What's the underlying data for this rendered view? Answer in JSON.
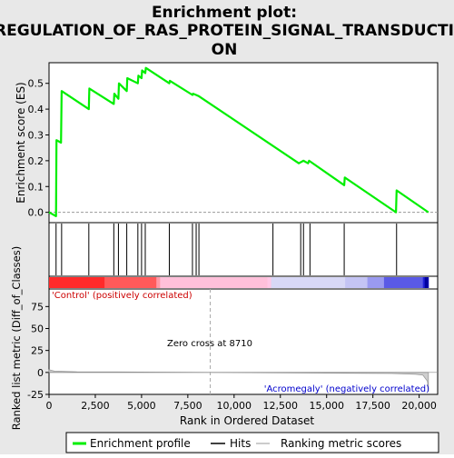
{
  "chart_data": {
    "title_line1": "Enrichment plot:",
    "title_line2": "REGULATION_OF_RAS_PROTEIN_SIGNAL_TRANSDUCTI",
    "title_line3": "ON",
    "type": "line",
    "panels": {
      "enrichment": {
        "ylabel": "Enrichment score (ES)",
        "ylim": [
          -0.04,
          0.58
        ],
        "yticks": [
          "0.0",
          "0.1",
          "0.2",
          "0.3",
          "0.4",
          "0.5"
        ],
        "ytick_values": [
          0.0,
          0.1,
          0.2,
          0.3,
          0.4,
          0.5
        ],
        "series_name": "Enrichment profile",
        "color": "#00ee00",
        "points": [
          [
            0,
            0.0
          ],
          [
            380,
            -0.015
          ],
          [
            400,
            0.28
          ],
          [
            650,
            0.27
          ],
          [
            680,
            0.47
          ],
          [
            2150,
            0.4
          ],
          [
            2180,
            0.48
          ],
          [
            3500,
            0.42
          ],
          [
            3530,
            0.46
          ],
          [
            3750,
            0.44
          ],
          [
            3780,
            0.5
          ],
          [
            4200,
            0.47
          ],
          [
            4230,
            0.52
          ],
          [
            4800,
            0.5
          ],
          [
            4830,
            0.53
          ],
          [
            5000,
            0.52
          ],
          [
            5030,
            0.55
          ],
          [
            5200,
            0.54
          ],
          [
            5230,
            0.56
          ],
          [
            6500,
            0.5
          ],
          [
            6530,
            0.51
          ],
          [
            7750,
            0.455
          ],
          [
            7780,
            0.46
          ],
          [
            7950,
            0.455
          ],
          [
            8100,
            0.45
          ],
          [
            13500,
            0.19
          ],
          [
            13750,
            0.2
          ],
          [
            14000,
            0.19
          ],
          [
            14050,
            0.2
          ],
          [
            15950,
            0.105
          ],
          [
            15980,
            0.135
          ],
          [
            18750,
            0.0
          ],
          [
            18780,
            0.085
          ],
          [
            20500,
            0.0
          ]
        ]
      },
      "hits": {
        "positions": [
          380,
          680,
          2150,
          3500,
          3750,
          4200,
          4800,
          5000,
          5200,
          6500,
          7750,
          7950,
          8100,
          12100,
          13600,
          13750,
          14100,
          15950,
          18780
        ]
      },
      "metric": {
        "ylabel": "Ranked list metric (Diff_of_Classes)",
        "ylim": [
          -25,
          95
        ],
        "yticks": [
          "-25",
          "0",
          "25",
          "50",
          "75"
        ],
        "ytick_values": [
          -25,
          0,
          25,
          50,
          75
        ],
        "series_name": "Ranking metric scores",
        "color": "#bbbbbb",
        "points": [
          [
            0,
            3
          ],
          [
            300,
            1.5
          ],
          [
            1500,
            0.8
          ],
          [
            8710,
            0
          ],
          [
            18500,
            -1.2
          ],
          [
            19800,
            -2
          ],
          [
            20200,
            -3
          ],
          [
            20450,
            -10
          ],
          [
            20500,
            -22
          ]
        ]
      }
    },
    "xlabel": "Rank in Ordered Dataset",
    "xlim": [
      0,
      21000
    ],
    "xticks": [
      "0",
      "2,500",
      "5,000",
      "7,500",
      "10,000",
      "12,500",
      "15,000",
      "17,500",
      "20,000"
    ],
    "xtick_values": [
      0,
      2500,
      5000,
      7500,
      10000,
      12500,
      15000,
      17500,
      20000
    ],
    "zero_cross_label": "Zero cross at 8710",
    "zero_cross": 8710,
    "positive_label": "'Control' (positively correlated)",
    "negative_label": "'Acromegaly' (negatively correlated)",
    "positive_color": "#cc0000",
    "negative_color": "#0000cc",
    "legend": {
      "placement": "bottom",
      "entries": [
        {
          "label": "Enrichment profile",
          "color": "#00ee00"
        },
        {
          "label": "Hits",
          "color": "#000000"
        },
        {
          "label": "Ranking metric scores",
          "color": "#bbbbbb"
        }
      ]
    }
  }
}
